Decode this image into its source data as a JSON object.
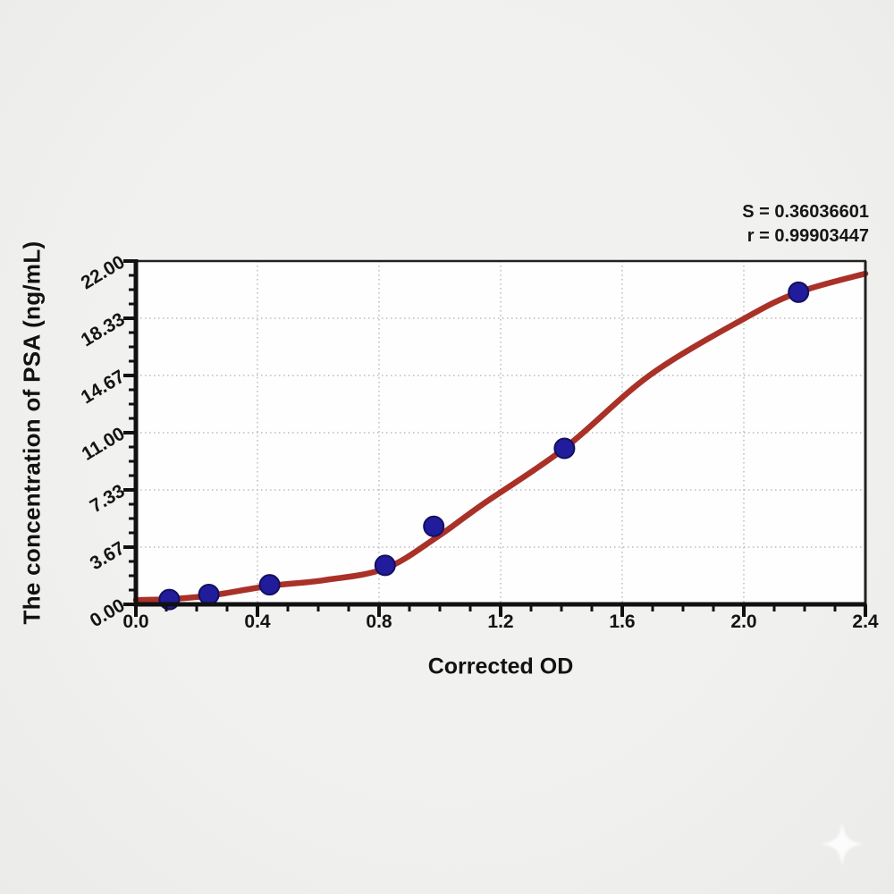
{
  "chart_data": {
    "type": "scatter",
    "title": "",
    "xlabel": "Corrected OD",
    "ylabel": "The concentration of PSA (ng/mL)",
    "xlim": [
      0,
      2.4
    ],
    "ylim": [
      0,
      22
    ],
    "grid": true,
    "x_ticks": {
      "values": [
        0,
        0.4,
        0.8,
        1.2,
        1.6,
        2.0,
        2.4
      ],
      "labels": [
        "0.0",
        "0.4",
        "0.8",
        "1.2",
        "1.6",
        "2.0",
        "2.4"
      ],
      "minor_step": 0.1
    },
    "y_ticks": {
      "values": [
        0,
        3.6667,
        7.3333,
        11,
        14.6667,
        18.3333,
        22
      ],
      "labels": [
        "0.00",
        "3.67",
        "7.33",
        "11.00",
        "14.67",
        "18.33",
        "22.00"
      ],
      "minor_step": 0.91667
    },
    "series": [
      {
        "name": "fit-curve",
        "type": "line",
        "color": "#a93128",
        "points": [
          [
            0,
            0.28
          ],
          [
            0.11,
            0.34
          ],
          [
            0.24,
            0.55
          ],
          [
            0.44,
            1.18
          ],
          [
            0.62,
            1.55
          ],
          [
            0.82,
            2.3
          ],
          [
            0.99,
            4.3
          ],
          [
            1.14,
            6.4
          ],
          [
            1.41,
            10.0
          ],
          [
            1.69,
            14.67
          ],
          [
            2.0,
            18.3
          ],
          [
            2.18,
            20.0
          ],
          [
            2.4,
            21.2
          ]
        ]
      },
      {
        "name": "standard-points",
        "type": "scatter",
        "color": "#211c9c",
        "edge_color": "#13105e",
        "points": [
          [
            0.11,
            0.31
          ],
          [
            0.24,
            0.63
          ],
          [
            0.44,
            1.25
          ],
          [
            0.82,
            2.5
          ],
          [
            0.98,
            5.0
          ],
          [
            1.41,
            10.0
          ],
          [
            2.18,
            20.0
          ]
        ]
      }
    ],
    "annotation": {
      "line1": "S = 0.36036601",
      "line2": "r = 0.99903447"
    },
    "colors": {
      "axis": "#111111",
      "frame": "#222222",
      "grid": "#bcbcbc",
      "plot_background": "#fefefe",
      "page_background": "#efefed",
      "tick_text": "#141414",
      "watermark": "#ffffff"
    }
  },
  "watermark": {
    "icon": "sparkle-icon"
  }
}
